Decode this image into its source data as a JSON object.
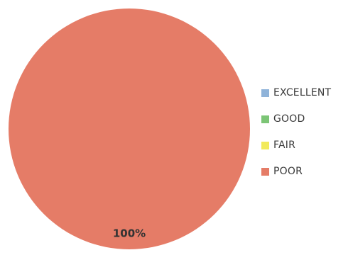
{
  "chart_data": {
    "type": "pie",
    "title": "",
    "categories": [
      "EXCELLENT",
      "GOOD",
      "FAIR",
      "POOR"
    ],
    "values": [
      0,
      0,
      0,
      100
    ],
    "data_labels": [
      "",
      "",
      "",
      "100%"
    ],
    "colors": [
      "#8fb3d9",
      "#7cc576",
      "#f2ea5c",
      "#e57c67"
    ],
    "legend_position": "right"
  }
}
